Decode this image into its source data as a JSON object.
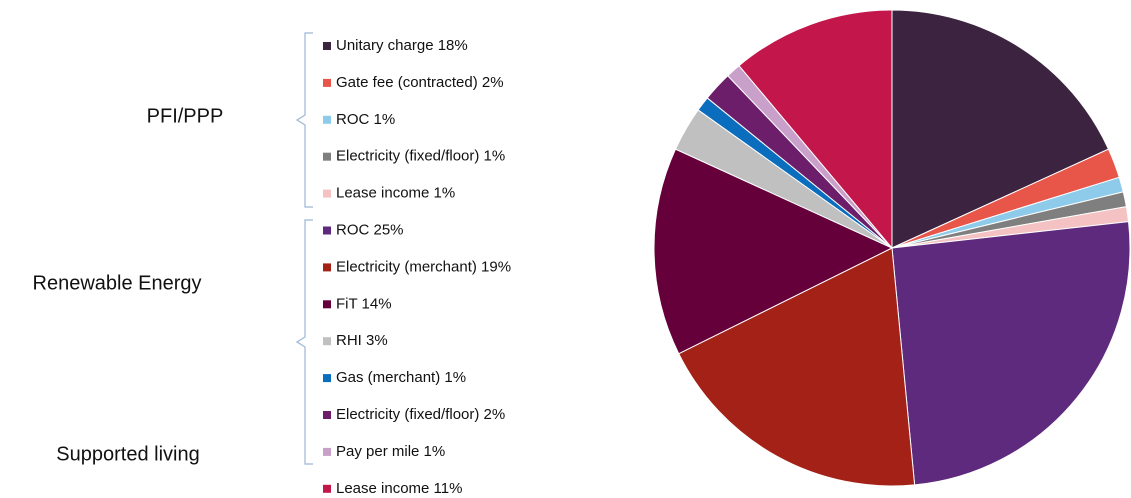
{
  "chart_data": {
    "type": "pie",
    "group_labels": [
      "PFI/PPP",
      "Renewable Energy",
      "Supported living"
    ],
    "categories": [
      "Unitary charge 18%",
      "Gate fee (contracted) 2%",
      "ROC 1%",
      "Electricity (fixed/floor) 1%",
      "Lease income 1%",
      "ROC 25%",
      "Electricity (merchant) 19%",
      "FiT 14%",
      "RHI 3%",
      "Gas (merchant) 1%",
      "Electricity (fixed/floor) 2%",
      "Pay per mile 1%",
      "Lease income 11%"
    ],
    "values": [
      18,
      2,
      1,
      1,
      1,
      25,
      19,
      14,
      3,
      1,
      2,
      1,
      11
    ],
    "colors": [
      "#3c2340",
      "#e8564a",
      "#8ecbea",
      "#7f7f7f",
      "#f4c2c2",
      "#5e2a7e",
      "#a32116",
      "#65003a",
      "#c0c0c0",
      "#0b6dbd",
      "#6c1e6b",
      "#c9a0c9",
      "#c3174b"
    ],
    "legend": "left"
  }
}
